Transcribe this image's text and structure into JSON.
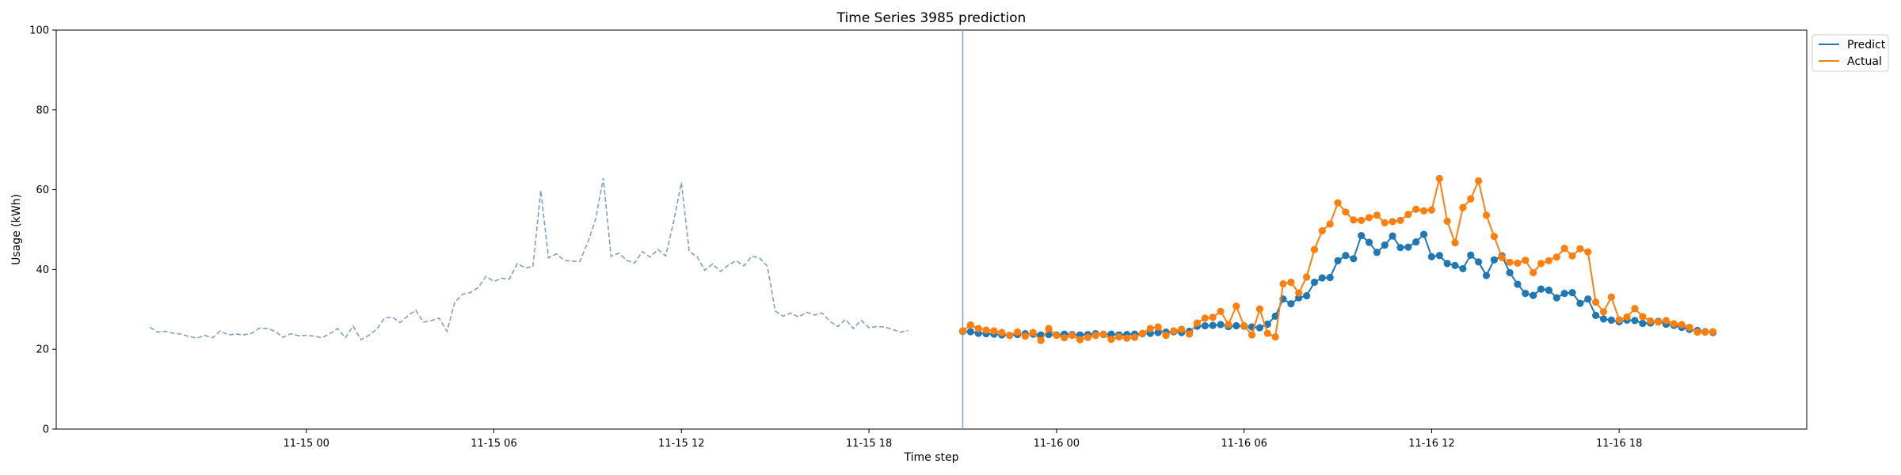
{
  "chart_data": {
    "type": "line",
    "title": "Time Series 3985 prediction",
    "xlabel": "Time step",
    "ylabel": "Usage (kWh)",
    "ylim": [
      0,
      100
    ],
    "xlim": [
      "2023-11-14 16:00",
      "2023-11-17 00:00"
    ],
    "y_ticks": [
      0,
      20,
      40,
      60,
      80,
      100
    ],
    "x_ticks": [
      {
        "t": "2023-11-15 00:00",
        "label": "11-15 00"
      },
      {
        "t": "2023-11-15 06:00",
        "label": "11-15 06"
      },
      {
        "t": "2023-11-15 12:00",
        "label": "11-15 12"
      },
      {
        "t": "2023-11-15 18:00",
        "label": "11-15 18"
      },
      {
        "t": "2023-11-16 00:00",
        "label": "11-16 00"
      },
      {
        "t": "2023-11-16 06:00",
        "label": "11-16 06"
      },
      {
        "t": "2023-11-16 12:00",
        "label": "11-16 12"
      },
      {
        "t": "2023-11-16 18:00",
        "label": "11-16 18"
      }
    ],
    "grid": false,
    "legend_position": "upper right outside",
    "split_time": "2023-11-15 21:00",
    "step_minutes": 15,
    "history": {
      "start": "2023-11-14 19:00",
      "color": "#7f9fc8",
      "values": [
        25.5,
        24.3,
        24.5,
        24.0,
        23.8,
        23.2,
        22.8,
        23.5,
        22.9,
        24.6,
        23.6,
        23.8,
        23.6,
        24.0,
        25.3,
        25.2,
        24.5,
        23.0,
        23.9,
        23.4,
        23.5,
        23.3,
        22.9,
        23.9,
        25.2,
        22.9,
        25.8,
        22.4,
        23.5,
        25.0,
        27.8,
        28.1,
        26.7,
        28.4,
        29.8,
        26.8,
        27.2,
        27.8,
        24.5,
        31.8,
        33.8,
        34.2,
        35.5,
        38.3,
        37.0,
        37.8,
        37.6,
        41.5,
        40.4,
        40.7,
        59.8,
        42.9,
        43.9,
        42.3,
        42.1,
        42.0,
        46.7,
        52.4,
        62.9,
        43.3,
        44.1,
        42.3,
        41.6,
        44.5,
        43.1,
        45.0,
        43.4,
        52.0,
        61.8,
        44.5,
        43.2,
        39.8,
        41.4,
        39.5,
        41.1,
        42.2,
        40.9,
        43.3,
        42.9,
        40.8,
        29.6,
        28.3,
        29.1,
        28.1,
        29.3,
        28.6,
        29.1,
        27.0,
        25.7,
        27.5,
        25.2,
        27.3,
        25.4,
        25.7,
        25.6,
        25.0,
        24.3,
        24.7
      ]
    },
    "series": [
      {
        "name": "Predict",
        "color": "#1f77b4",
        "start": "2023-11-15 21:00",
        "values": [
          24.5,
          24.4,
          24.0,
          23.9,
          23.8,
          23.6,
          23.5,
          23.7,
          23.9,
          23.8,
          23.6,
          23.7,
          23.6,
          23.8,
          23.7,
          23.6,
          23.7,
          23.9,
          23.7,
          23.8,
          23.6,
          23.7,
          23.8,
          23.9,
          24.0,
          24.2,
          24.3,
          24.4,
          24.2,
          24.5,
          25.8,
          25.9,
          26.0,
          26.2,
          25.7,
          25.9,
          25.8,
          25.6,
          25.4,
          26.3,
          28.3,
          32.6,
          31.4,
          32.9,
          33.4,
          36.8,
          37.9,
          38.0,
          42.2,
          43.5,
          42.7,
          48.5,
          46.8,
          44.3,
          46.1,
          48.4,
          45.5,
          45.6,
          46.9,
          48.8,
          43.2,
          43.5,
          41.5,
          41.0,
          40.2,
          43.6,
          41.9,
          38.5,
          42.4,
          43.4,
          39.2,
          36.3,
          34.0,
          33.5,
          35.1,
          34.8,
          32.9,
          34.0,
          34.2,
          31.5,
          32.6,
          28.5,
          27.6,
          27.3,
          26.9,
          27.3,
          27.2,
          26.5,
          26.6,
          27.0,
          26.3,
          26.0,
          25.5,
          25.0,
          24.7,
          24.4,
          24.2
        ]
      },
      {
        "name": "Actual",
        "color": "#ff7f0e",
        "start": "2023-11-15 21:00",
        "values": [
          24.6,
          26.1,
          25.2,
          24.8,
          24.6,
          24.2,
          23.5,
          24.3,
          23.3,
          24.2,
          22.2,
          25.2,
          23.5,
          22.9,
          23.5,
          22.4,
          23.0,
          23.5,
          23.8,
          22.5,
          23.1,
          22.8,
          23.0,
          24.0,
          25.2,
          25.6,
          23.5,
          24.6,
          25.0,
          23.8,
          26.6,
          27.8,
          28.0,
          29.5,
          26.2,
          30.8,
          25.9,
          23.6,
          30.1,
          24.0,
          23.1,
          36.4,
          36.8,
          34.1,
          38.1,
          45.0,
          49.7,
          51.4,
          56.7,
          54.4,
          52.4,
          52.3,
          53.0,
          53.6,
          51.7,
          52.0,
          52.3,
          53.8,
          55.1,
          54.7,
          54.9,
          62.8,
          52.1,
          46.7,
          55.5,
          57.7,
          62.2,
          53.6,
          48.3,
          43.0,
          41.8,
          41.6,
          42.3,
          39.2,
          41.5,
          42.2,
          43.1,
          45.3,
          43.4,
          45.2,
          44.4,
          31.8,
          29.4,
          33.1,
          27.4,
          28.1,
          30.2,
          28.2,
          27.1,
          26.8,
          27.2,
          26.4,
          26.2,
          25.5,
          24.3,
          24.3,
          24.4
        ]
      }
    ]
  }
}
